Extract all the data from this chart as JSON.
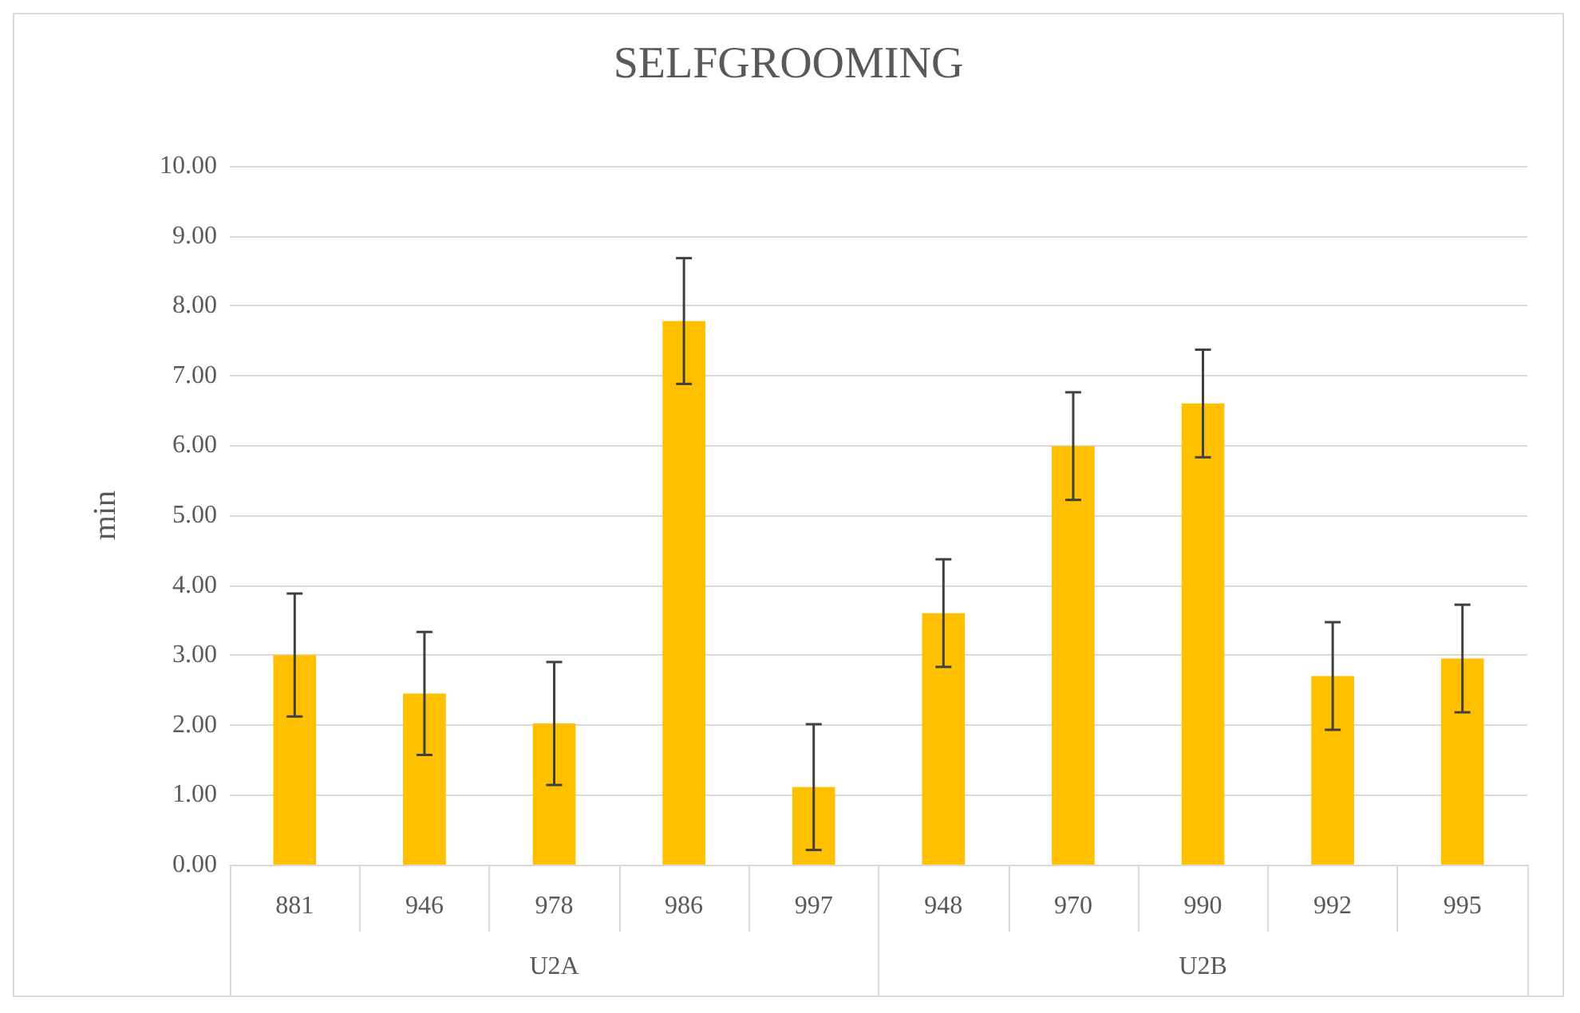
{
  "chart_data": {
    "type": "bar",
    "title": "SELFGROOMING",
    "ylabel": "min",
    "categories": [
      "881",
      "946",
      "978",
      "986",
      "997",
      "948",
      "970",
      "990",
      "992",
      "995"
    ],
    "annotations": [
      "U2A",
      "U2B"
    ],
    "values": [
      3.0,
      2.45,
      2.02,
      7.78,
      1.11,
      3.6,
      5.99,
      6.6,
      2.7,
      2.95
    ],
    "errors": [
      0.88,
      0.88,
      0.88,
      0.9,
      0.9,
      0.77,
      0.77,
      0.77,
      0.77,
      0.77
    ],
    "color": "#ffc000",
    "ylim": [
      0,
      10
    ],
    "yticks": [
      {
        "value": 0,
        "label": "0.00"
      },
      {
        "value": 1,
        "label": "1.00"
      },
      {
        "value": 2,
        "label": "2.00"
      },
      {
        "value": 3,
        "label": "3.00"
      },
      {
        "value": 4,
        "label": "4.00"
      },
      {
        "value": 5,
        "label": "5.00"
      },
      {
        "value": 6,
        "label": "6.00"
      },
      {
        "value": 7,
        "label": "7.00"
      },
      {
        "value": 8,
        "label": "8.00"
      },
      {
        "value": 9,
        "label": "9.00"
      },
      {
        "value": 10,
        "label": "10.00"
      }
    ],
    "grid": "y"
  }
}
